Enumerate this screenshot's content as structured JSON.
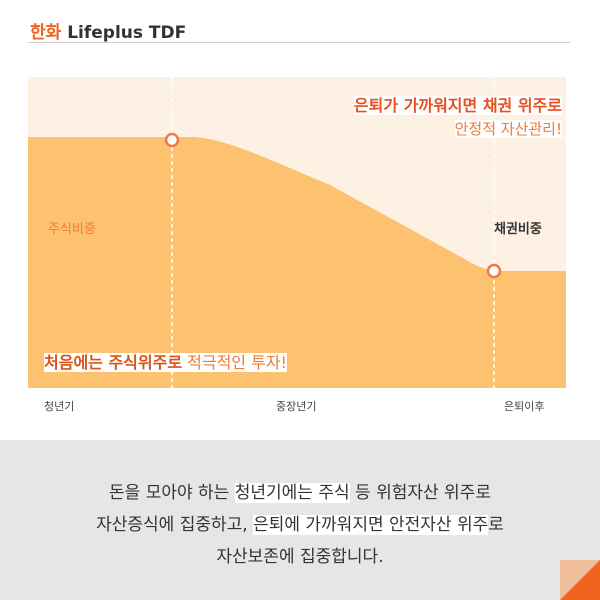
{
  "header": {
    "brand": "한화",
    "product": " Lifeplus TDF"
  },
  "chart": {
    "title_line1": "은퇴가 가까워지면 채권 위주로",
    "title_line2": "안정적 자산관리!",
    "stock_label": "주식비중",
    "bond_label": "채권비중",
    "bottom_bold": "처음에는 주식위주로",
    "bottom_rest": " 적극적인 투자!",
    "stages": [
      "청년기",
      "중장년기",
      "은퇴이후"
    ]
  },
  "caption": {
    "lines": [
      [
        "돈을 모아야 하는 ",
        "청년기에는 주식",
        " 등 위험자산 위주로"
      ],
      [
        "자산증식에 집중하고, ",
        "은퇴에 가까워지면 안전자산 위주",
        "로"
      ],
      [
        "자산보존에 집중합니다."
      ]
    ]
  }
}
